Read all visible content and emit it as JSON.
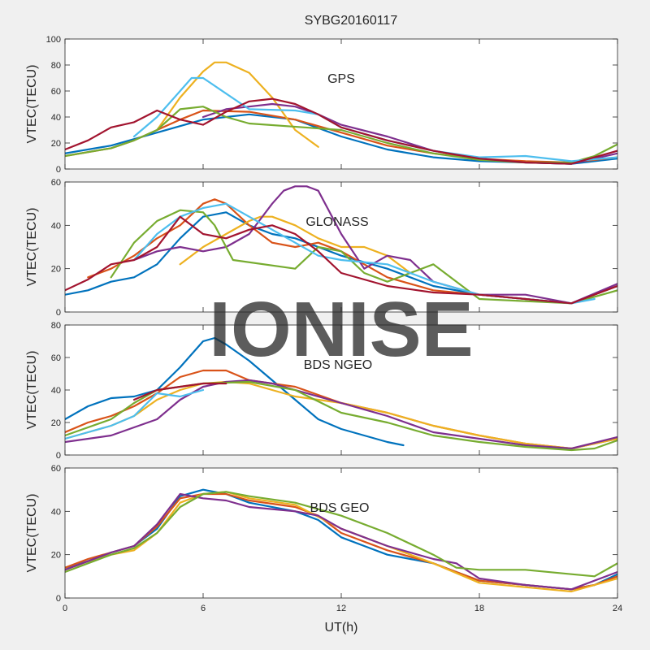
{
  "figure": {
    "title": "SYBG20160117",
    "watermark": "IONISE",
    "xlabel": "UT(h)",
    "xticks": [
      0,
      6,
      12,
      18,
      24
    ],
    "xlim": [
      0,
      24
    ],
    "background": "#f0f0f0",
    "axes_background": "#ffffff",
    "axis_color": "#262626",
    "palette": [
      "#0072BD",
      "#D95319",
      "#EDB120",
      "#7E2F8E",
      "#77AC30",
      "#4DBEEE",
      "#A2142F"
    ]
  },
  "chart_data": [
    {
      "type": "line",
      "label": "GPS",
      "ylabel": "VTEC(TECU)",
      "ylim": [
        0,
        100
      ],
      "yticks": [
        0,
        20,
        40,
        60,
        80,
        100
      ],
      "grid": false,
      "series": [
        {
          "color": "#0072BD",
          "x": [
            0,
            2,
            4,
            6,
            8,
            10,
            12,
            14,
            16,
            18,
            20,
            22,
            24
          ],
          "y": [
            12,
            18,
            28,
            38,
            42,
            38,
            25,
            15,
            9,
            6,
            5,
            4,
            8
          ]
        },
        {
          "color": "#D95319",
          "x": [
            0,
            2,
            3,
            4,
            5,
            6,
            8,
            10,
            12,
            14,
            16,
            18,
            20,
            22,
            24
          ],
          "y": [
            10,
            16,
            22,
            30,
            38,
            45,
            44,
            38,
            28,
            18,
            12,
            8,
            6,
            5,
            9
          ]
        },
        {
          "color": "#EDB120",
          "x": [
            4,
            5,
            6,
            6.5,
            7,
            8,
            9,
            10,
            11
          ],
          "y": [
            30,
            55,
            75,
            82,
            82,
            74,
            55,
            30,
            17
          ]
        },
        {
          "color": "#7E2F8E",
          "x": [
            6,
            7,
            8,
            9,
            10,
            11,
            12,
            14,
            16,
            18,
            20,
            22,
            24
          ],
          "y": [
            40,
            46,
            48,
            50,
            48,
            42,
            34,
            25,
            14,
            8,
            5,
            4,
            12
          ]
        },
        {
          "color": "#77AC30",
          "x": [
            0,
            1,
            2,
            3,
            4,
            5,
            6,
            7,
            8,
            12,
            14,
            16,
            18,
            20,
            22,
            23,
            24
          ],
          "y": [
            10,
            13,
            16,
            22,
            30,
            46,
            48,
            40,
            35,
            30,
            20,
            12,
            7,
            5,
            5,
            10,
            19
          ]
        },
        {
          "color": "#4DBEEE",
          "x": [
            3,
            4,
            5,
            5.5,
            6,
            7,
            8,
            10,
            11,
            12,
            14,
            16,
            18,
            20,
            22,
            24
          ],
          "y": [
            25,
            40,
            60,
            70,
            70,
            58,
            46,
            45,
            42,
            32,
            22,
            14,
            9,
            10,
            6,
            9
          ]
        },
        {
          "color": "#A2142F",
          "x": [
            0,
            1,
            2,
            3,
            4,
            5,
            6,
            7,
            8,
            9,
            10,
            11,
            12,
            14,
            16,
            18,
            20,
            22,
            24
          ],
          "y": [
            15,
            22,
            32,
            36,
            45,
            38,
            34,
            44,
            52,
            54,
            50,
            42,
            32,
            22,
            14,
            8,
            5,
            4,
            14
          ]
        }
      ]
    },
    {
      "type": "line",
      "label": "GLONASS",
      "ylabel": "VTEC(TECU)",
      "ylim": [
        0,
        60
      ],
      "yticks": [
        0,
        20,
        40,
        60
      ],
      "grid": false,
      "series": [
        {
          "color": "#0072BD",
          "x": [
            0,
            1,
            2,
            3,
            4,
            5,
            6,
            7,
            8,
            9,
            10,
            11,
            12,
            14,
            16,
            18,
            20,
            22,
            24
          ],
          "y": [
            8,
            10,
            14,
            16,
            22,
            34,
            44,
            46,
            40,
            36,
            34,
            30,
            26,
            20,
            12,
            8,
            6,
            4,
            12
          ]
        },
        {
          "color": "#D95319",
          "x": [
            1,
            2,
            3,
            4,
            5,
            6,
            6.5,
            7,
            8,
            9,
            10,
            11,
            12,
            14,
            16,
            18,
            20,
            22,
            24
          ],
          "y": [
            16,
            20,
            26,
            34,
            40,
            50,
            52,
            50,
            40,
            32,
            30,
            32,
            28,
            16,
            10,
            8,
            6,
            4,
            12
          ]
        },
        {
          "color": "#EDB120",
          "x": [
            5,
            6,
            7,
            8,
            8.5,
            9,
            10,
            11,
            12,
            13,
            14,
            15
          ],
          "y": [
            22,
            30,
            36,
            42,
            44,
            44,
            40,
            34,
            30,
            30,
            26,
            18
          ]
        },
        {
          "color": "#7E2F8E",
          "x": [
            3,
            4,
            5,
            6,
            7,
            8,
            9,
            9.5,
            10,
            10.5,
            11,
            12,
            13,
            14,
            15,
            16,
            18,
            20,
            22,
            24
          ],
          "y": [
            24,
            28,
            30,
            28,
            30,
            36,
            50,
            56,
            58,
            58,
            56,
            36,
            20,
            26,
            24,
            14,
            8,
            8,
            4,
            13
          ]
        },
        {
          "color": "#77AC30",
          "x": [
            2,
            3,
            4,
            5,
            6,
            6.5,
            7,
            7.3,
            10,
            11,
            12,
            13,
            14,
            15,
            16,
            18,
            20,
            22,
            24
          ],
          "y": [
            16,
            32,
            42,
            47,
            46,
            40,
            30,
            24,
            20,
            30,
            28,
            18,
            14,
            18,
            22,
            6,
            5,
            4,
            10
          ]
        },
        {
          "color": "#4DBEEE",
          "x": [
            3,
            4,
            5,
            6,
            7,
            8,
            9,
            10,
            11,
            12,
            14,
            16,
            18,
            20,
            22,
            23
          ],
          "y": [
            24,
            36,
            44,
            48,
            50,
            44,
            38,
            32,
            26,
            24,
            22,
            14,
            8,
            6,
            4,
            6
          ]
        },
        {
          "color": "#A2142F",
          "x": [
            0,
            1,
            2,
            3,
            4,
            5,
            6,
            7,
            8,
            9,
            10,
            11,
            12,
            14,
            16,
            18,
            20,
            22,
            24
          ],
          "y": [
            10,
            15,
            22,
            24,
            30,
            44,
            36,
            34,
            38,
            40,
            36,
            28,
            18,
            12,
            9,
            8,
            6,
            4,
            12
          ]
        }
      ]
    },
    {
      "type": "line",
      "label": "BDS NGEO",
      "ylabel": "VTEC(TECU)",
      "ylim": [
        0,
        80
      ],
      "yticks": [
        0,
        20,
        40,
        60,
        80
      ],
      "grid": false,
      "series": [
        {
          "color": "#0072BD",
          "x": [
            0,
            1,
            2,
            3,
            4,
            5,
            6,
            6.5,
            7,
            8,
            9,
            10,
            11,
            12,
            13,
            14,
            14.7
          ],
          "y": [
            22,
            30,
            35,
            36,
            40,
            54,
            70,
            72,
            68,
            58,
            46,
            34,
            22,
            16,
            12,
            8,
            6
          ]
        },
        {
          "color": "#D95319",
          "x": [
            0,
            1,
            2,
            3,
            4,
            5,
            6,
            7,
            8,
            10,
            12,
            14,
            16,
            18,
            20,
            22,
            24
          ],
          "y": [
            14,
            20,
            24,
            30,
            38,
            48,
            52,
            52,
            46,
            42,
            32,
            26,
            18,
            12,
            7,
            4,
            10
          ]
        },
        {
          "color": "#EDB120",
          "x": [
            0,
            1,
            2,
            3,
            4,
            5,
            6,
            7,
            8,
            10,
            12,
            14,
            16,
            18,
            20,
            22,
            24
          ],
          "y": [
            10,
            14,
            18,
            24,
            34,
            40,
            44,
            45,
            44,
            36,
            32,
            26,
            18,
            12,
            7,
            4,
            10
          ]
        },
        {
          "color": "#7E2F8E",
          "x": [
            0,
            2,
            4,
            5,
            6,
            7,
            8,
            9,
            10,
            12,
            14,
            16,
            18,
            20,
            22,
            24
          ],
          "y": [
            8,
            12,
            22,
            34,
            42,
            45,
            46,
            44,
            40,
            32,
            24,
            14,
            10,
            6,
            4,
            11
          ]
        },
        {
          "color": "#77AC30",
          "x": [
            0,
            2,
            3,
            4,
            5,
            6,
            8,
            10,
            12,
            14,
            16,
            18,
            20,
            22,
            23,
            24
          ],
          "y": [
            12,
            22,
            32,
            40,
            42,
            44,
            45,
            40,
            26,
            20,
            12,
            8,
            5,
            3,
            4,
            9
          ]
        },
        {
          "color": "#4DBEEE",
          "x": [
            0,
            1,
            2,
            3,
            4,
            5,
            6
          ],
          "y": [
            10,
            14,
            18,
            24,
            38,
            36,
            40
          ]
        },
        {
          "color": "#A2142F",
          "x": [
            3,
            4,
            5,
            6,
            7
          ],
          "y": [
            34,
            40,
            42,
            44,
            44
          ]
        }
      ]
    },
    {
      "type": "line",
      "label": "BDS GEO",
      "ylabel": "VTEC(TECU)",
      "ylim": [
        0,
        60
      ],
      "yticks": [
        0,
        20,
        40,
        60
      ],
      "grid": false,
      "series": [
        {
          "color": "#0072BD",
          "x": [
            0,
            1,
            2,
            3,
            4,
            5,
            6,
            7,
            8,
            10,
            11,
            12,
            13,
            14,
            15,
            16,
            17,
            18,
            20,
            22,
            23,
            24
          ],
          "y": [
            14,
            17,
            21,
            24,
            32,
            47,
            50,
            48,
            44,
            40,
            36,
            28,
            24,
            20,
            18,
            16,
            12,
            8,
            6,
            4,
            6,
            11
          ]
        },
        {
          "color": "#D95319",
          "x": [
            0,
            1,
            2,
            3,
            4,
            5,
            6,
            7,
            8,
            10,
            11,
            12,
            14,
            16,
            17,
            18,
            20,
            22,
            23,
            24
          ],
          "y": [
            14,
            18,
            21,
            24,
            33,
            46,
            48,
            48,
            45,
            42,
            38,
            30,
            22,
            16,
            12,
            8,
            6,
            4,
            6,
            10
          ]
        },
        {
          "color": "#EDB120",
          "x": [
            0,
            1,
            2,
            3,
            4,
            5,
            6,
            7,
            8,
            10,
            12,
            14,
            16,
            18,
            20,
            22,
            24
          ],
          "y": [
            13,
            17,
            20,
            22,
            30,
            44,
            48,
            49,
            46,
            43,
            32,
            24,
            16,
            7,
            5,
            3,
            9
          ]
        },
        {
          "color": "#7E2F8E",
          "x": [
            0,
            1,
            2,
            3,
            4,
            5,
            6,
            7,
            8,
            10,
            11,
            12,
            14,
            16,
            17,
            18,
            20,
            22,
            24
          ],
          "y": [
            13,
            17,
            21,
            24,
            34,
            48,
            46,
            45,
            42,
            40,
            38,
            32,
            24,
            18,
            16,
            9,
            6,
            4,
            12
          ]
        },
        {
          "color": "#77AC30",
          "x": [
            0,
            1,
            2,
            3,
            4,
            5,
            6,
            7,
            8,
            10,
            12,
            14,
            16,
            17,
            18,
            20,
            22,
            23,
            24
          ],
          "y": [
            12,
            16,
            20,
            23,
            30,
            42,
            48,
            49,
            47,
            44,
            38,
            30,
            20,
            14,
            13,
            13,
            11,
            10,
            16
          ]
        }
      ]
    }
  ]
}
